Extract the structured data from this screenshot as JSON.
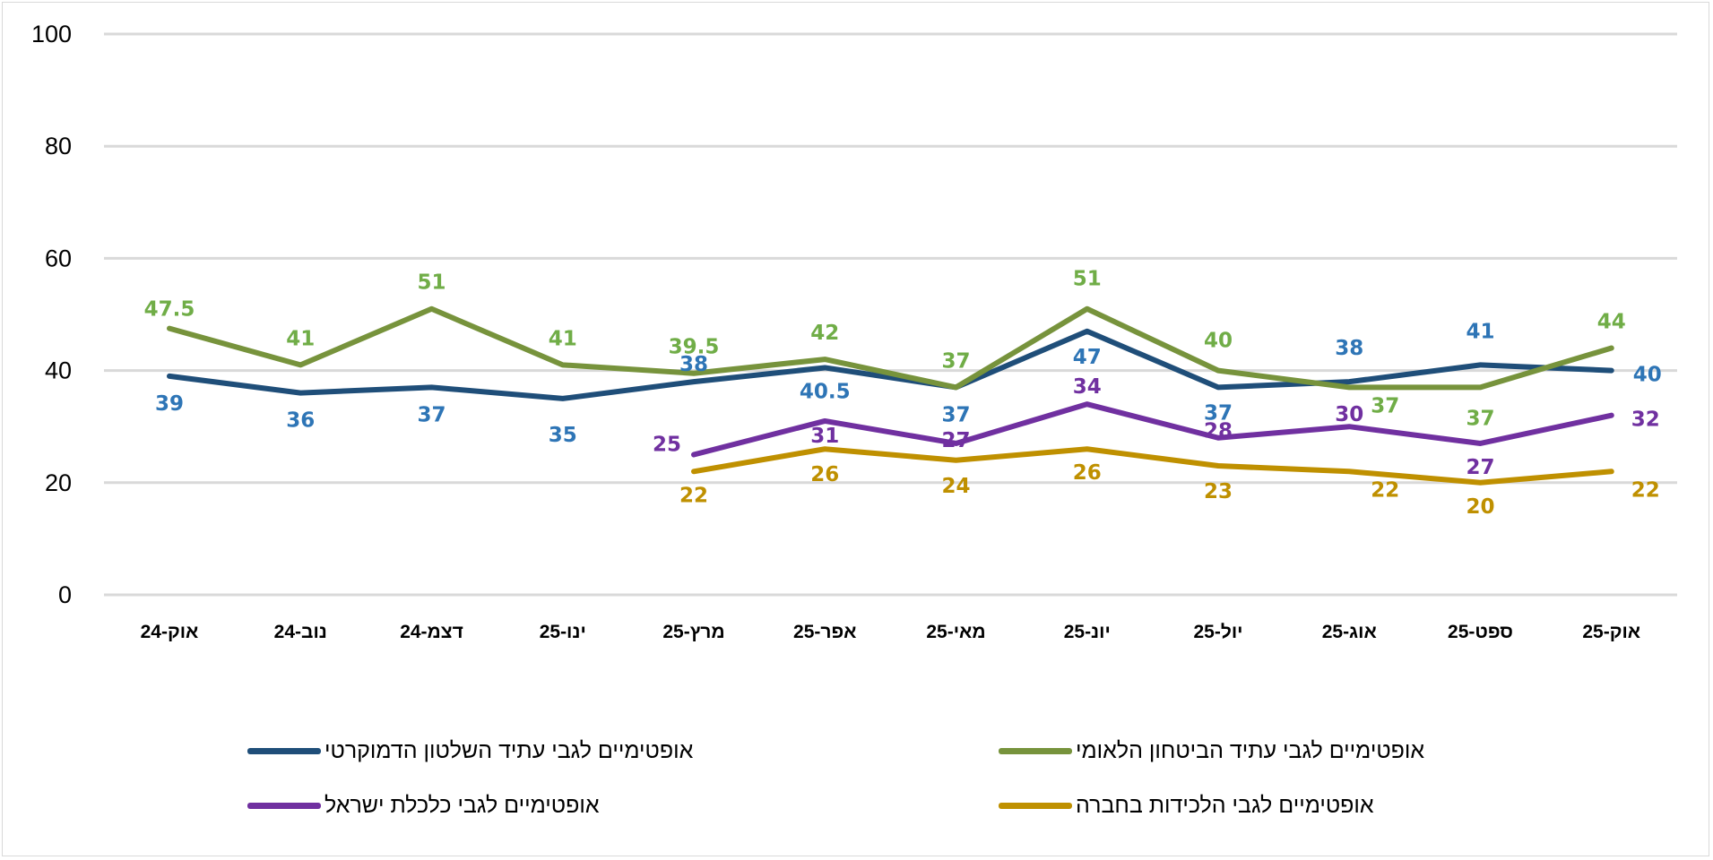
{
  "chart_data": {
    "type": "line",
    "categories": [
      "אוק-24",
      "נוב-24",
      "דצמ-24",
      "ינו-25",
      "מרץ-25",
      "אפר-25",
      "מאי-25",
      "יונ-25",
      "יול-25",
      "אוג-25",
      "ספט-25",
      "אוק-25"
    ],
    "ylim": [
      0,
      100
    ],
    "yticks": [
      0,
      20,
      40,
      60,
      80,
      100
    ],
    "grid": true,
    "legend_position": "bottom",
    "series": [
      {
        "name": "אופטימיים לגבי עתיד השלטון הדמוקרטי",
        "color": "#1F4E79",
        "label_color": "#2E75B6",
        "values": [
          39,
          36,
          37,
          35,
          38,
          40.5,
          37,
          47,
          37,
          38,
          41,
          40
        ]
      },
      {
        "name": "אופטימיים לגבי עתיד הביטחון הלאומי",
        "color": "#77933C",
        "label_color": "#70AD47",
        "values": [
          47.5,
          41,
          51,
          41,
          39.5,
          42,
          37,
          51,
          40,
          37,
          37,
          44
        ]
      },
      {
        "name": "אופטימיים לגבי כלכלת ישראל",
        "color": "#7030A0",
        "label_color": "#7030A0",
        "values": [
          null,
          null,
          null,
          null,
          25,
          31,
          27,
          34,
          28,
          30,
          27,
          32
        ]
      },
      {
        "name": "אופטימיים לגבי הלכידות בחברה",
        "color": "#BF9000",
        "label_color": "#BF9000",
        "values": [
          null,
          null,
          null,
          null,
          22,
          26,
          24,
          26,
          23,
          22,
          20,
          22
        ]
      }
    ]
  }
}
